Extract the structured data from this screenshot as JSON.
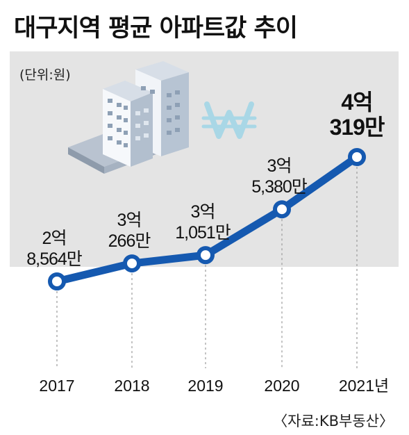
{
  "title": "대구지역 평균 아파트값 추이",
  "unit": "(단위:원)",
  "source": "〈자료:KB부동산〉",
  "colors": {
    "line": "#1559b0",
    "marker_fill": "#ffffff",
    "panel": "#e4e4e4",
    "text": "#111111",
    "won_sign": "#a9d7e6"
  },
  "icons": [
    "apartment-buildings-icon",
    "won-sign-icon"
  ],
  "chart_data": {
    "type": "line",
    "categories": [
      "2017",
      "2018",
      "2019",
      "2020",
      "2021년"
    ],
    "values": [
      285640000,
      302660000,
      310510000,
      353800000,
      403190000
    ],
    "data_labels": [
      [
        "2억",
        "8,564만"
      ],
      [
        "3억",
        "266만"
      ],
      [
        "3억",
        "1,051만"
      ],
      [
        "3억",
        "5,380만"
      ],
      [
        "4억",
        "319만"
      ]
    ],
    "title": "대구지역 평균 아파트값 추이",
    "ylabel": "(단위:원)",
    "grid": "vertical dashed lines per year",
    "legend": "none"
  }
}
